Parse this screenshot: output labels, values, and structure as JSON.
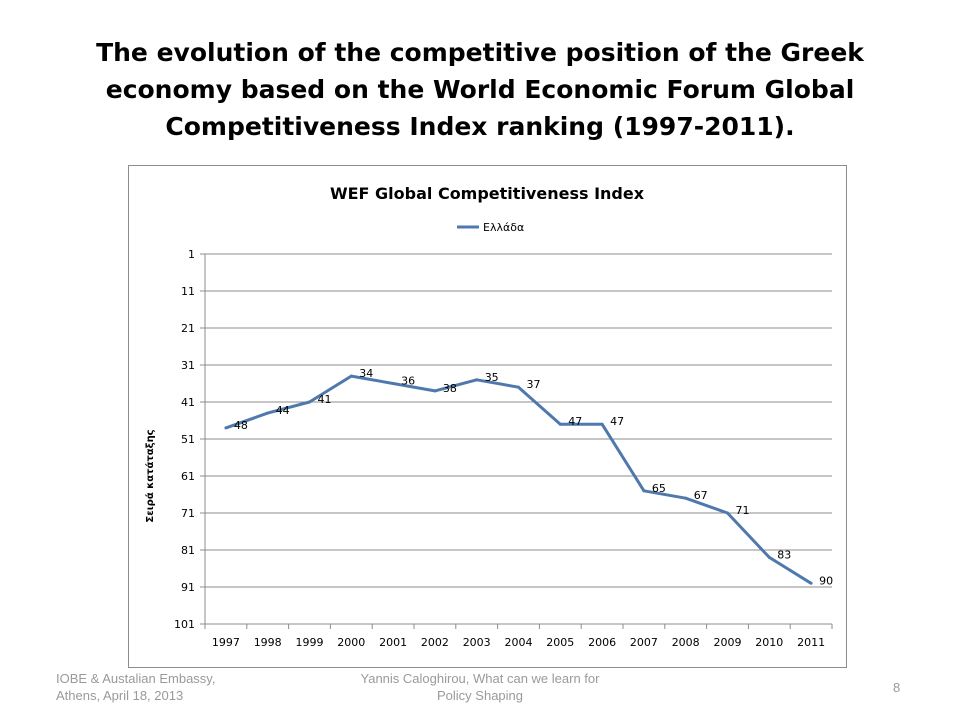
{
  "slide": {
    "title_lines": [
      "The evolution of the competitive position of the Greek",
      "economy based on the World Economic Forum Global",
      "Competitiveness Index ranking  (1997-2011)."
    ],
    "footer_left": [
      "IOBE & Austalian Embassy,",
      "Athens, April 18, 2013"
    ],
    "footer_center": [
      "Yannis Caloghirou, What can we learn for",
      "Policy Shaping"
    ],
    "page_number": "8"
  },
  "chart_data": {
    "type": "line",
    "title": "WEF Global Competitiveness Index",
    "ylabel": "Σειρά κατάταξης",
    "xlabel": "",
    "categories": [
      "1997",
      "1998",
      "1999",
      "2000",
      "2001",
      "2002",
      "2003",
      "2004",
      "2005",
      "2006",
      "2007",
      "2008",
      "2009",
      "2010",
      "2011"
    ],
    "series": [
      {
        "name": "Ελλάδα",
        "values": [
          48,
          44,
          41,
          34,
          36,
          38,
          35,
          37,
          47,
          47,
          65,
          67,
          71,
          83,
          90
        ]
      }
    ],
    "data_labels": [
      "48",
      "44",
      "41",
      "34",
      "36",
      "38",
      "35",
      "37",
      "47",
      "47",
      "65",
      "67",
      "71",
      "83",
      "90"
    ],
    "y_ticks": [
      1,
      11,
      21,
      31,
      41,
      51,
      61,
      71,
      81,
      91,
      101
    ],
    "ylim": [
      1,
      101
    ],
    "y_reversed": true,
    "grid": true,
    "legend_position": "top",
    "line_color": "#4f79ad"
  }
}
